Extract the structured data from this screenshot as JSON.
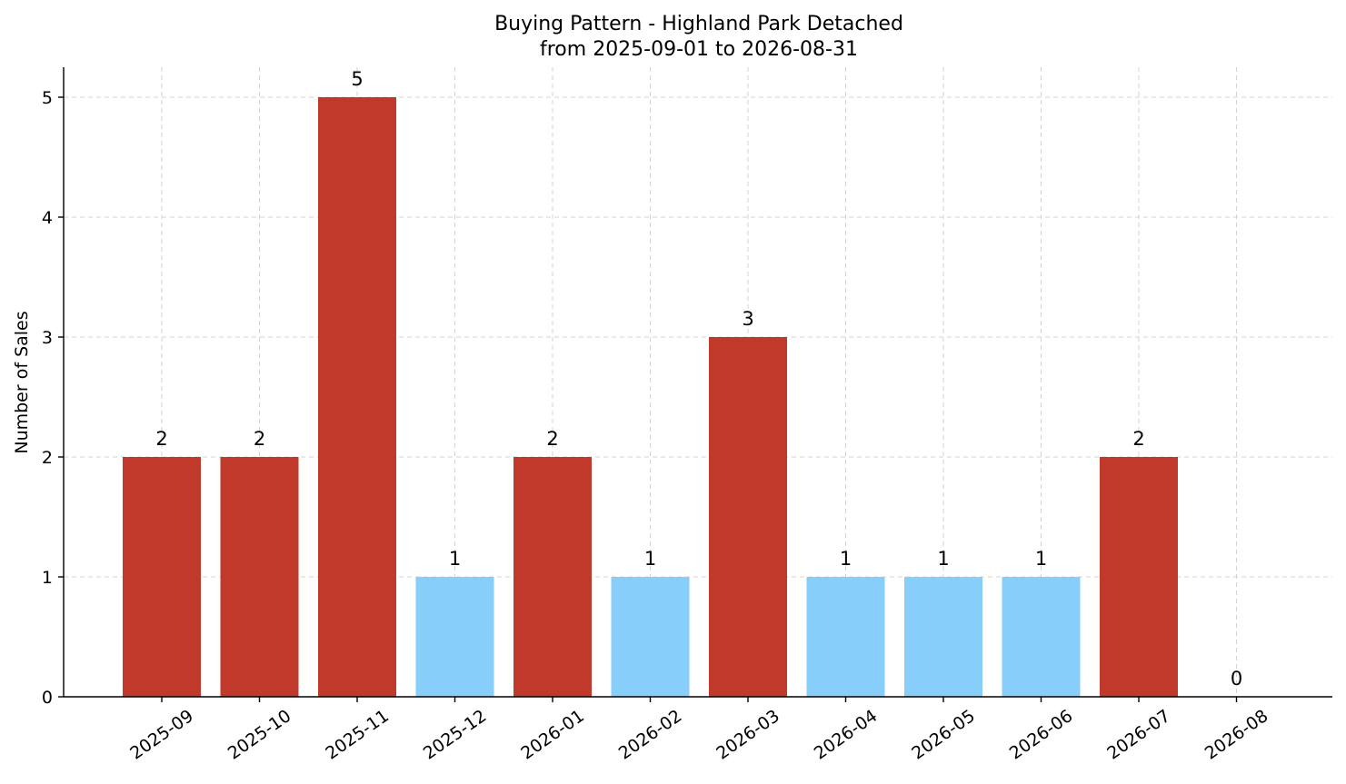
{
  "chart_data": {
    "type": "bar",
    "title": "Buying Pattern - Highland Park Detached",
    "subtitle": "from 2025-09-01 to 2026-08-31",
    "xlabel": "",
    "ylabel": "Number of Sales",
    "categories": [
      "2025-09",
      "2025-10",
      "2025-11",
      "2025-12",
      "2026-01",
      "2026-02",
      "2026-03",
      "2026-04",
      "2026-05",
      "2026-06",
      "2026-07",
      "2026-08"
    ],
    "values": [
      2,
      2,
      5,
      1,
      2,
      1,
      3,
      1,
      1,
      1,
      2,
      0
    ],
    "data_labels": [
      "2",
      "2",
      "5",
      "1",
      "2",
      "1",
      "3",
      "1",
      "1",
      "1",
      "2",
      "0"
    ],
    "ylim": [
      0,
      5.25
    ],
    "yticks": [
      "0",
      "1",
      "2",
      "3",
      "4",
      "5"
    ],
    "grid": true,
    "colors": {
      "high": "#c0392b",
      "low": "#87cefa"
    },
    "color_threshold": 2
  }
}
